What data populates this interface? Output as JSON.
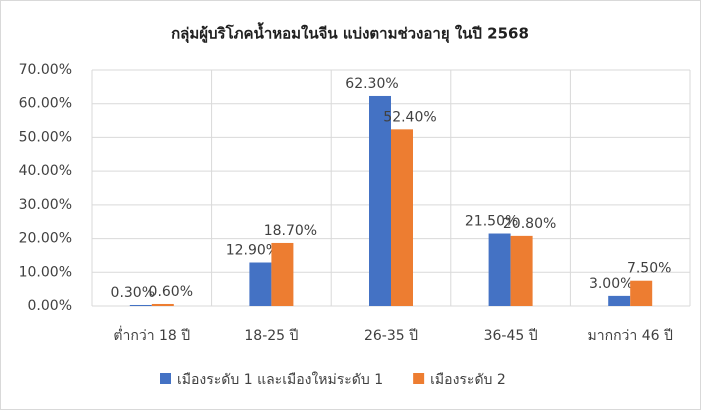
{
  "chart_data": {
    "type": "bar",
    "title": "กลุ่มผู้บริโภคน้ำหอมในจีน แบ่งตามช่วงอายุ ในปี 2568",
    "categories": [
      "ต่ำกว่า 18 ปี",
      "18-25 ปี",
      "26-35 ปี",
      "36-45 ปี",
      "มากกว่า 46 ปี"
    ],
    "series": [
      {
        "name": "เมืองระดับ 1 และเมืองใหม่ระดับ 1",
        "color": "#4472c4",
        "values": [
          0.3,
          12.9,
          62.3,
          21.5,
          3.0
        ],
        "value_labels": [
          "0.30%",
          "12.90%",
          "62.30%",
          "21.50%",
          "3.00%"
        ]
      },
      {
        "name": "เมืองระดับ 2",
        "color": "#ed7d31",
        "values": [
          0.6,
          18.7,
          52.4,
          20.8,
          7.5
        ],
        "value_labels": [
          "0.60%",
          "18.70%",
          "52.40%",
          "20.80%",
          "7.50%"
        ]
      }
    ],
    "ylim": [
      0,
      70
    ],
    "yticks": [
      {
        "value": 0,
        "label": "0.00%"
      },
      {
        "value": 10,
        "label": "10.00%"
      },
      {
        "value": 20,
        "label": "20.00%"
      },
      {
        "value": 30,
        "label": "30.00%"
      },
      {
        "value": 40,
        "label": "40.00%"
      },
      {
        "value": 50,
        "label": "50.00%"
      },
      {
        "value": 60,
        "label": "60.00%"
      },
      {
        "value": 70,
        "label": "70.00%"
      }
    ],
    "grid": true,
    "legend": "bottom"
  }
}
